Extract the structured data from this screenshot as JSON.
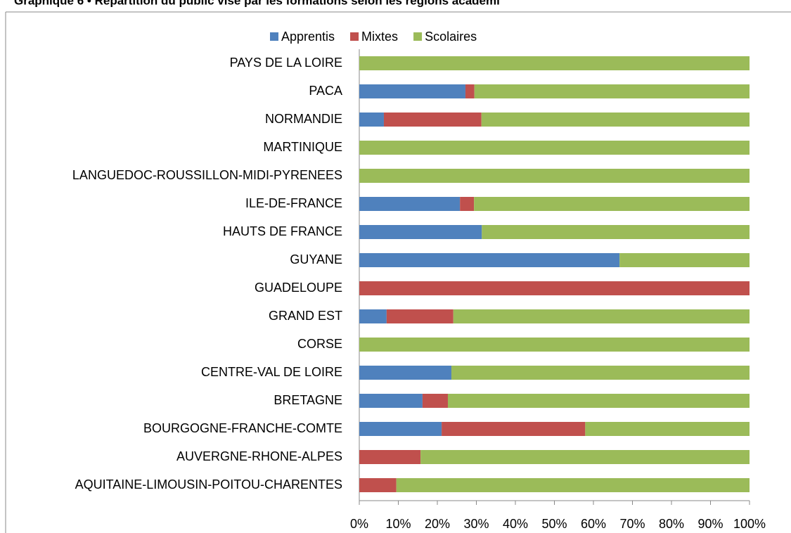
{
  "chart_data": {
    "type": "stacked-barh",
    "title": "Graphique 6 • Répartition du public visé par les formations selon les régions académi",
    "categories": [
      "PAYS DE LA LOIRE",
      "PACA",
      "NORMANDIE",
      "MARTINIQUE",
      "LANGUEDOC-ROUSSILLON-MIDI-PYRENEES",
      "ILE-DE-FRANCE",
      "HAUTS DE FRANCE",
      "GUYANE",
      "GUADELOUPE",
      "GRAND EST",
      "CORSE",
      "CENTRE-VAL DE LOIRE",
      "BRETAGNE",
      "BOURGOGNE-FRANCHE-COMTE",
      "AUVERGNE-RHONE-ALPES",
      "AQUITAINE-LIMOUSIN-POITOU-CHARENTES"
    ],
    "series": [
      {
        "name": "Apprentis",
        "color": "#4f81bd",
        "values": [
          0,
          27.2,
          6.3,
          0,
          0,
          25.8,
          31.4,
          66.7,
          0,
          7.0,
          0,
          23.6,
          16.2,
          21.1,
          0,
          0
        ]
      },
      {
        "name": "Mixtes",
        "color": "#c0504d",
        "values": [
          0,
          2.3,
          25.0,
          0,
          0,
          3.6,
          0,
          0,
          100,
          17.1,
          0,
          0,
          6.5,
          36.8,
          15.7,
          9.5
        ]
      },
      {
        "name": "Scolaires",
        "color": "#9bbb59",
        "values": [
          100,
          70.5,
          68.7,
          100,
          100,
          70.6,
          68.6,
          33.3,
          0,
          75.9,
          100,
          76.4,
          77.3,
          42.1,
          84.3,
          90.5
        ]
      }
    ],
    "xlim": [
      0,
      100
    ],
    "xticks": [
      {
        "value": 0,
        "label": "0%"
      },
      {
        "value": 10,
        "label": "10%"
      },
      {
        "value": 20,
        "label": "20%"
      },
      {
        "value": 30,
        "label": "30%"
      },
      {
        "value": 40,
        "label": "40%"
      },
      {
        "value": 50,
        "label": "50%"
      },
      {
        "value": 60,
        "label": "60%"
      },
      {
        "value": 70,
        "label": "70%"
      },
      {
        "value": 80,
        "label": "80%"
      },
      {
        "value": 90,
        "label": "90%"
      },
      {
        "value": 100,
        "label": "100%"
      }
    ],
    "legend": "top"
  }
}
